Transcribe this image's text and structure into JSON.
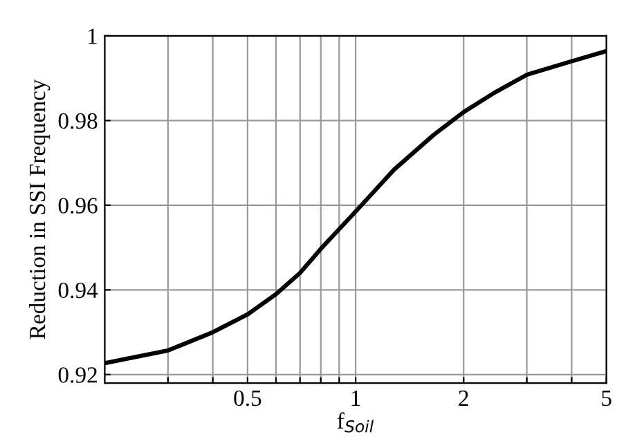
{
  "chart_data": {
    "type": "line",
    "xlabel": "f$_{Soil}$",
    "ylabel": "Reduction in SSI Frequency",
    "x": [
      0.2,
      0.3,
      0.4,
      0.5,
      0.6,
      0.7,
      0.8,
      1,
      1.28,
      1.65,
      2,
      2.43,
      3,
      4,
      5
    ],
    "series": [
      {
        "color": "#000000",
        "values": [
          0.9227,
          0.9257,
          0.93,
          0.9342,
          0.939,
          0.944,
          0.9497,
          0.9585,
          0.9684,
          0.9766,
          0.982,
          0.9865,
          0.9908,
          0.994,
          0.9964
        ]
      }
    ],
    "log": "x",
    "xlim": [
      0.2,
      5
    ],
    "ylim": [
      0.918,
      1
    ],
    "xticks": [
      {
        "value": 0.3,
        "label": null
      },
      {
        "value": 0.4,
        "label": null
      },
      0.5,
      {
        "value": 0.6,
        "label": null
      },
      {
        "value": 0.7,
        "label": null
      },
      {
        "value": 0.8,
        "label": null
      },
      {
        "value": 0.9,
        "label": null
      },
      1,
      2,
      {
        "value": 3,
        "label": null
      },
      {
        "value": 4,
        "label": null
      },
      5
    ],
    "yticks": [
      0.92,
      0.94,
      0.96,
      0.98,
      1
    ],
    "grid": true,
    "legend": false,
    "marker": "none",
    "line_style": "solid"
  }
}
